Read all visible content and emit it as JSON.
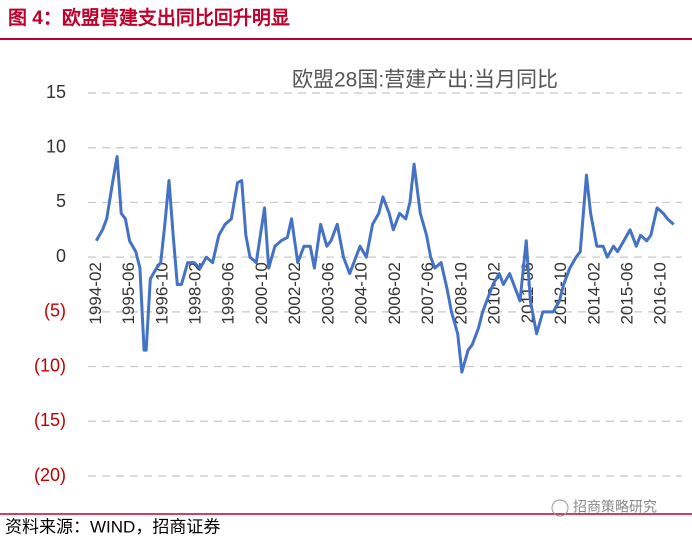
{
  "header": {
    "title": "图 4：欧盟营建支出同比回升明显"
  },
  "chart_data": {
    "type": "line",
    "title": "欧盟28国:营建产出:当月同比",
    "x": [
      "1994-02",
      "1994-05",
      "1994-07",
      "1994-10",
      "1994-12",
      "1995-02",
      "1995-04",
      "1995-06",
      "1995-09",
      "1995-11",
      "1996-01",
      "1996-02",
      "1996-04",
      "1996-07",
      "1996-09",
      "1996-11",
      "1997-01",
      "1997-03",
      "1997-05",
      "1997-07",
      "1997-10",
      "1998-01",
      "1998-04",
      "1998-07",
      "1998-10",
      "1999-01",
      "1999-04",
      "1999-07",
      "1999-10",
      "1999-12",
      "2000-02",
      "2000-04",
      "2000-07",
      "2000-09",
      "2000-11",
      "2001-01",
      "2001-04",
      "2001-07",
      "2001-10",
      "2001-12",
      "2002-03",
      "2002-06",
      "2002-09",
      "2002-11",
      "2003-02",
      "2003-05",
      "2003-07",
      "2003-10",
      "2004-01",
      "2004-04",
      "2004-07",
      "2004-09",
      "2004-12",
      "2005-03",
      "2005-06",
      "2005-08",
      "2005-11",
      "2006-01",
      "2006-04",
      "2006-07",
      "2006-09",
      "2006-11",
      "2007-02",
      "2007-05",
      "2007-07",
      "2007-09",
      "2007-12",
      "2008-03",
      "2008-05",
      "2008-08",
      "2008-10",
      "2009-01",
      "2009-03",
      "2009-06",
      "2009-08",
      "2009-10",
      "2010-01",
      "2010-04",
      "2010-06",
      "2010-09",
      "2010-11",
      "2011-02",
      "2011-05",
      "2011-07",
      "2011-10",
      "2012-01",
      "2012-03",
      "2012-06",
      "2012-09",
      "2012-11",
      "2013-02",
      "2013-05",
      "2013-07",
      "2013-10",
      "2013-12",
      "2014-03",
      "2014-06",
      "2014-08",
      "2014-11",
      "2015-01",
      "2015-04",
      "2015-07",
      "2015-10",
      "2015-12",
      "2016-03",
      "2016-05",
      "2016-08",
      "2016-11",
      "2017-01",
      "2017-04"
    ],
    "series": [
      {
        "name": "欧盟28国:营建产出:当月同比",
        "color": "#4472c4",
        "values": [
          1.5,
          2.5,
          3.5,
          7,
          9.2,
          4,
          3.5,
          1.5,
          0.5,
          -1,
          -8.5,
          -8.5,
          -2,
          -1,
          -0.5,
          3,
          7,
          2,
          -2.5,
          -2.5,
          -0.5,
          -0.5,
          -1,
          0,
          -0.5,
          2,
          3,
          3.5,
          6.8,
          7,
          2,
          0,
          -0.5,
          2,
          4.5,
          -1,
          1,
          1.5,
          1.8,
          3.5,
          -0.5,
          1,
          1,
          -1,
          3,
          1,
          1.5,
          3,
          0,
          -1.5,
          0,
          1,
          0,
          3,
          4,
          5.5,
          4,
          2.5,
          4,
          3.5,
          5,
          8.5,
          4,
          2,
          0,
          -1,
          -0.5,
          -3,
          -5,
          -7,
          -10.5,
          -8.5,
          -8,
          -6.5,
          -5,
          -4,
          -2.5,
          -1.5,
          -2.5,
          -1.5,
          -2.5,
          -4,
          1.5,
          -4,
          -7,
          -5,
          -5,
          -5,
          -4,
          -2.5,
          -1,
          0,
          0.5,
          7.5,
          4,
          1,
          1,
          0,
          1,
          0.5,
          1.5,
          2.5,
          1,
          2,
          1.5,
          2,
          4.5,
          4,
          3.5,
          3
        ]
      }
    ],
    "xlim": [
      "1993-10",
      "2017-08"
    ],
    "xticks": [
      "1994-02",
      "1995-06",
      "1996-10",
      "1998-02",
      "1999-06",
      "2000-10",
      "2002-02",
      "2003-06",
      "2004-10",
      "2006-02",
      "2007-06",
      "2008-10",
      "2010-02",
      "2011-06",
      "2012-10",
      "2014-02",
      "2015-06",
      "2016-10"
    ],
    "ylim": [
      -20,
      15
    ],
    "yticks": [
      15,
      10,
      5,
      0,
      {
        "value": -5,
        "label": "(5)"
      },
      {
        "value": -10,
        "label": "(10)"
      },
      {
        "value": -15,
        "label": "(15)"
      },
      {
        "value": -20,
        "label": "(20)"
      }
    ],
    "grid": true
  },
  "footer": {
    "source": "资料来源：WIND，招商证券",
    "watermark": "招商策略研究"
  }
}
